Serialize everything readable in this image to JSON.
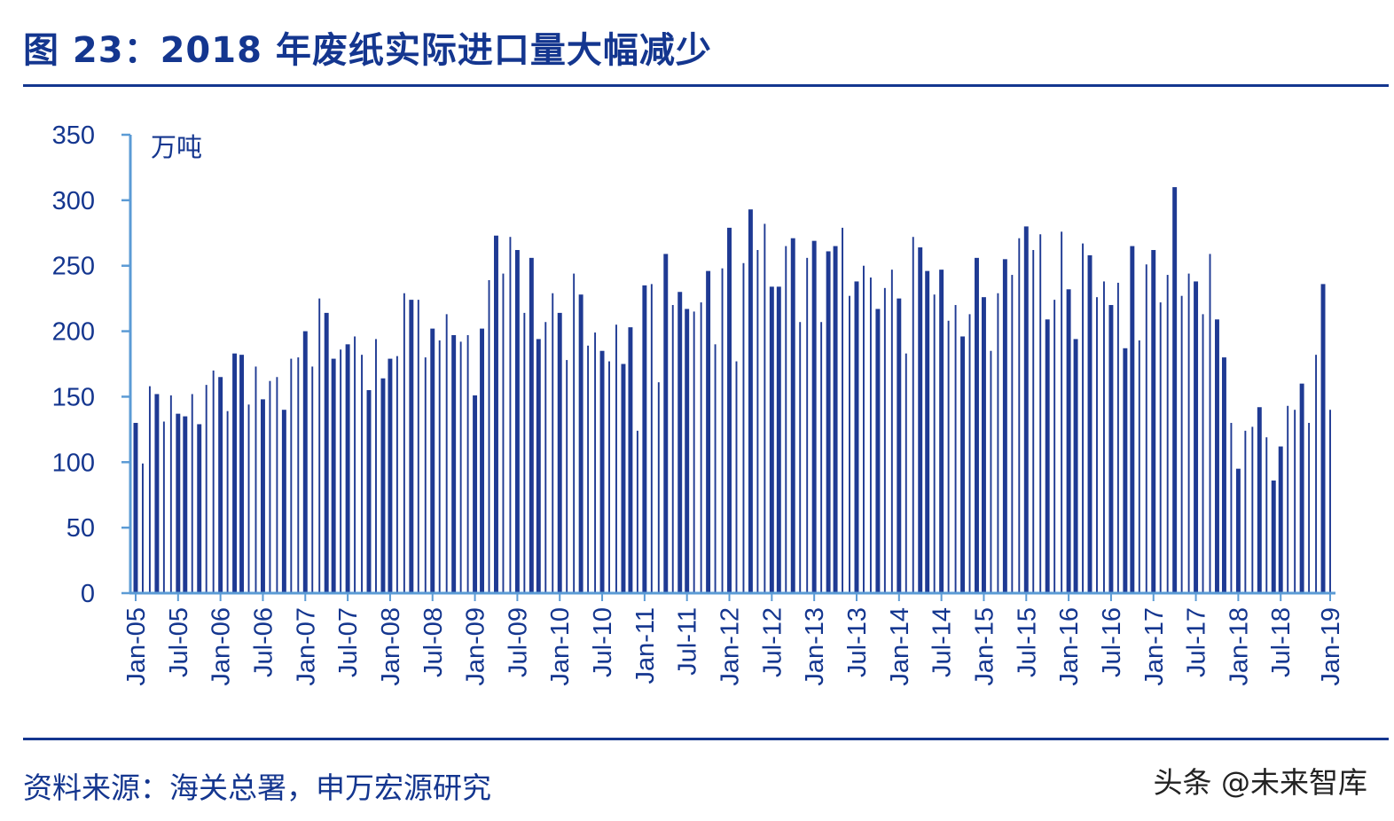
{
  "header": {
    "title": "图 23：2018 年废纸实际进口量大幅减少"
  },
  "footer": {
    "source": "资料来源：海关总署，申万宏源研究",
    "watermark": "头条 @未来智库"
  },
  "colors": {
    "primary": "#14368f",
    "axis": "#5b9bd5",
    "bar": "#1f3a93"
  },
  "chart_data": {
    "type": "bar",
    "unit_label": "万吨",
    "ylim": [
      0,
      350
    ],
    "yticks": [
      0,
      50,
      100,
      150,
      200,
      250,
      300,
      350
    ],
    "start_month": "Jan-05",
    "x_tick_labels": [
      "Jan-05",
      "Jul-05",
      "Jan-06",
      "Jul-06",
      "Jan-07",
      "Jul-07",
      "Jan-08",
      "Jul-08",
      "Jan-09",
      "Jul-09",
      "Jan-10",
      "Jul-10",
      "Jan-11",
      "Jul-11",
      "Jan-12",
      "Jul-12",
      "Jan-13",
      "Jul-13",
      "Jan-14",
      "Jul-14",
      "Jan-15",
      "Jul-15",
      "Jan-16",
      "Jul-16",
      "Jan-17",
      "Jul-17",
      "Jan-18",
      "Jul-18",
      "Jan-19"
    ],
    "grid": false,
    "legend": "none",
    "values": [
      130,
      99,
      158,
      152,
      131,
      151,
      137,
      135,
      152,
      129,
      159,
      170,
      165,
      139,
      183,
      182,
      144,
      173,
      148,
      162,
      165,
      140,
      179,
      180,
      200,
      173,
      225,
      214,
      179,
      186,
      190,
      196,
      182,
      155,
      194,
      164,
      179,
      181,
      229,
      224,
      224,
      180,
      202,
      193,
      213,
      197,
      192,
      197,
      151,
      202,
      239,
      273,
      244,
      272,
      262,
      214,
      256,
      194,
      207,
      229,
      214,
      178,
      244,
      228,
      189,
      199,
      185,
      177,
      205,
      175,
      203,
      124,
      235,
      236,
      161,
      259,
      220,
      230,
      217,
      215,
      222,
      246,
      190,
      248,
      279,
      177,
      252,
      293,
      262,
      282,
      234,
      234,
      265,
      271,
      207,
      256,
      269,
      207,
      261,
      265,
      279,
      227,
      238,
      250,
      241,
      217,
      233,
      247,
      225,
      183,
      272,
      264,
      246,
      228,
      247,
      208,
      220,
      196,
      213,
      256,
      226,
      185,
      229,
      255,
      243,
      271,
      280,
      262,
      274,
      209,
      224,
      276,
      232,
      194,
      267,
      258,
      226,
      238,
      220,
      237,
      187,
      265,
      193,
      251,
      262,
      222,
      243,
      310,
      227,
      244,
      238,
      213,
      259,
      209,
      180,
      130,
      95,
      124,
      127,
      142,
      119,
      86,
      112,
      143,
      140,
      160,
      130,
      182,
      236,
      140
    ]
  }
}
